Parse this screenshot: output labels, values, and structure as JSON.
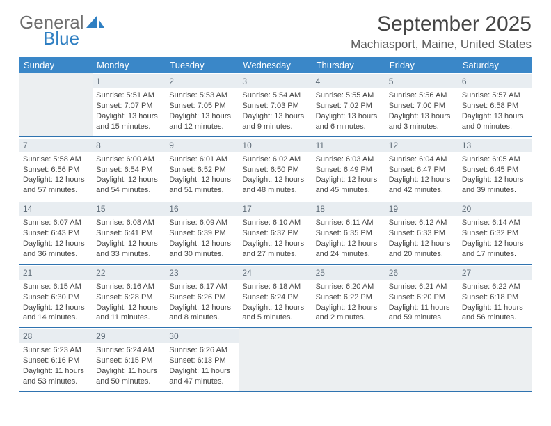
{
  "logo": {
    "text1": "General",
    "text2": "Blue",
    "icon_color": "#2f7fc2"
  },
  "title": "September 2025",
  "location": "Machiasport, Maine, United States",
  "colors": {
    "header_bg": "#3a87c8",
    "header_text": "#ffffff",
    "daynum_bg": "#e8edf1",
    "daynum_text": "#5d6a76",
    "cell_text": "#454545",
    "row_border": "#2f73b0",
    "empty_bg": "#eceff1"
  },
  "day_headers": [
    "Sunday",
    "Monday",
    "Tuesday",
    "Wednesday",
    "Thursday",
    "Friday",
    "Saturday"
  ],
  "weeks": [
    [
      null,
      {
        "n": "1",
        "sr": "Sunrise: 5:51 AM",
        "ss": "Sunset: 7:07 PM",
        "dl": "Daylight: 13 hours and 15 minutes."
      },
      {
        "n": "2",
        "sr": "Sunrise: 5:53 AM",
        "ss": "Sunset: 7:05 PM",
        "dl": "Daylight: 13 hours and 12 minutes."
      },
      {
        "n": "3",
        "sr": "Sunrise: 5:54 AM",
        "ss": "Sunset: 7:03 PM",
        "dl": "Daylight: 13 hours and 9 minutes."
      },
      {
        "n": "4",
        "sr": "Sunrise: 5:55 AM",
        "ss": "Sunset: 7:02 PM",
        "dl": "Daylight: 13 hours and 6 minutes."
      },
      {
        "n": "5",
        "sr": "Sunrise: 5:56 AM",
        "ss": "Sunset: 7:00 PM",
        "dl": "Daylight: 13 hours and 3 minutes."
      },
      {
        "n": "6",
        "sr": "Sunrise: 5:57 AM",
        "ss": "Sunset: 6:58 PM",
        "dl": "Daylight: 13 hours and 0 minutes."
      }
    ],
    [
      {
        "n": "7",
        "sr": "Sunrise: 5:58 AM",
        "ss": "Sunset: 6:56 PM",
        "dl": "Daylight: 12 hours and 57 minutes."
      },
      {
        "n": "8",
        "sr": "Sunrise: 6:00 AM",
        "ss": "Sunset: 6:54 PM",
        "dl": "Daylight: 12 hours and 54 minutes."
      },
      {
        "n": "9",
        "sr": "Sunrise: 6:01 AM",
        "ss": "Sunset: 6:52 PM",
        "dl": "Daylight: 12 hours and 51 minutes."
      },
      {
        "n": "10",
        "sr": "Sunrise: 6:02 AM",
        "ss": "Sunset: 6:50 PM",
        "dl": "Daylight: 12 hours and 48 minutes."
      },
      {
        "n": "11",
        "sr": "Sunrise: 6:03 AM",
        "ss": "Sunset: 6:49 PM",
        "dl": "Daylight: 12 hours and 45 minutes."
      },
      {
        "n": "12",
        "sr": "Sunrise: 6:04 AM",
        "ss": "Sunset: 6:47 PM",
        "dl": "Daylight: 12 hours and 42 minutes."
      },
      {
        "n": "13",
        "sr": "Sunrise: 6:05 AM",
        "ss": "Sunset: 6:45 PM",
        "dl": "Daylight: 12 hours and 39 minutes."
      }
    ],
    [
      {
        "n": "14",
        "sr": "Sunrise: 6:07 AM",
        "ss": "Sunset: 6:43 PM",
        "dl": "Daylight: 12 hours and 36 minutes."
      },
      {
        "n": "15",
        "sr": "Sunrise: 6:08 AM",
        "ss": "Sunset: 6:41 PM",
        "dl": "Daylight: 12 hours and 33 minutes."
      },
      {
        "n": "16",
        "sr": "Sunrise: 6:09 AM",
        "ss": "Sunset: 6:39 PM",
        "dl": "Daylight: 12 hours and 30 minutes."
      },
      {
        "n": "17",
        "sr": "Sunrise: 6:10 AM",
        "ss": "Sunset: 6:37 PM",
        "dl": "Daylight: 12 hours and 27 minutes."
      },
      {
        "n": "18",
        "sr": "Sunrise: 6:11 AM",
        "ss": "Sunset: 6:35 PM",
        "dl": "Daylight: 12 hours and 24 minutes."
      },
      {
        "n": "19",
        "sr": "Sunrise: 6:12 AM",
        "ss": "Sunset: 6:33 PM",
        "dl": "Daylight: 12 hours and 20 minutes."
      },
      {
        "n": "20",
        "sr": "Sunrise: 6:14 AM",
        "ss": "Sunset: 6:32 PM",
        "dl": "Daylight: 12 hours and 17 minutes."
      }
    ],
    [
      {
        "n": "21",
        "sr": "Sunrise: 6:15 AM",
        "ss": "Sunset: 6:30 PM",
        "dl": "Daylight: 12 hours and 14 minutes."
      },
      {
        "n": "22",
        "sr": "Sunrise: 6:16 AM",
        "ss": "Sunset: 6:28 PM",
        "dl": "Daylight: 12 hours and 11 minutes."
      },
      {
        "n": "23",
        "sr": "Sunrise: 6:17 AM",
        "ss": "Sunset: 6:26 PM",
        "dl": "Daylight: 12 hours and 8 minutes."
      },
      {
        "n": "24",
        "sr": "Sunrise: 6:18 AM",
        "ss": "Sunset: 6:24 PM",
        "dl": "Daylight: 12 hours and 5 minutes."
      },
      {
        "n": "25",
        "sr": "Sunrise: 6:20 AM",
        "ss": "Sunset: 6:22 PM",
        "dl": "Daylight: 12 hours and 2 minutes."
      },
      {
        "n": "26",
        "sr": "Sunrise: 6:21 AM",
        "ss": "Sunset: 6:20 PM",
        "dl": "Daylight: 11 hours and 59 minutes."
      },
      {
        "n": "27",
        "sr": "Sunrise: 6:22 AM",
        "ss": "Sunset: 6:18 PM",
        "dl": "Daylight: 11 hours and 56 minutes."
      }
    ],
    [
      {
        "n": "28",
        "sr": "Sunrise: 6:23 AM",
        "ss": "Sunset: 6:16 PM",
        "dl": "Daylight: 11 hours and 53 minutes."
      },
      {
        "n": "29",
        "sr": "Sunrise: 6:24 AM",
        "ss": "Sunset: 6:15 PM",
        "dl": "Daylight: 11 hours and 50 minutes."
      },
      {
        "n": "30",
        "sr": "Sunrise: 6:26 AM",
        "ss": "Sunset: 6:13 PM",
        "dl": "Daylight: 11 hours and 47 minutes."
      },
      null,
      null,
      null,
      null
    ]
  ]
}
